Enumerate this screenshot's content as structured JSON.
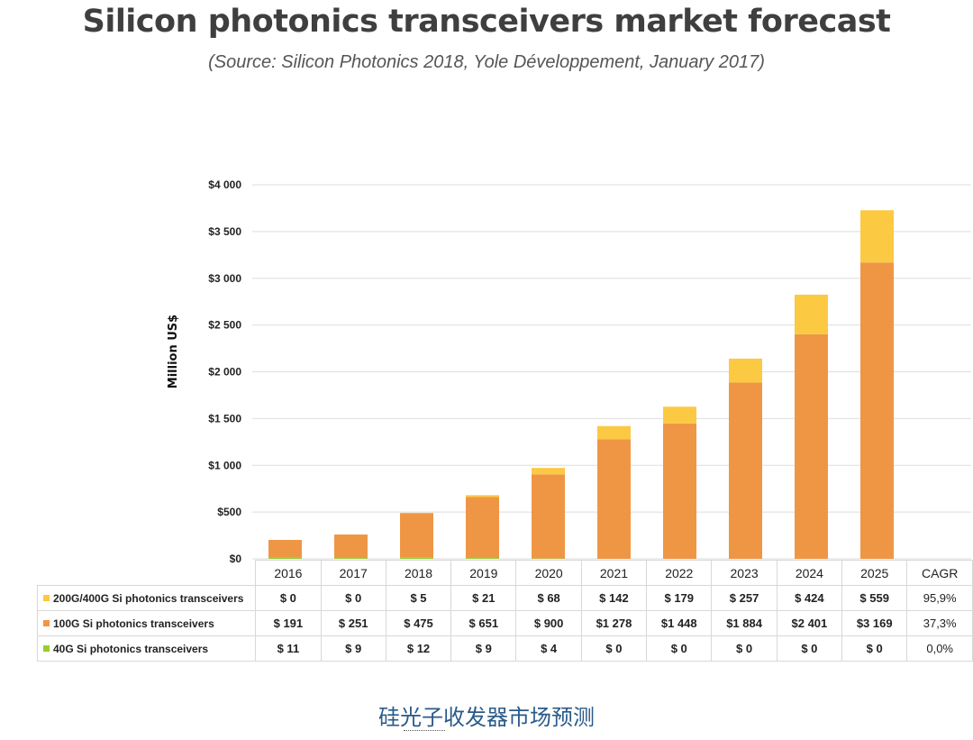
{
  "title": "Silicon photonics transceivers market forecast",
  "subtitle": "(Source: Silicon Photonics 2018, Yole Développement, January 2017)",
  "caption": "硅光子收发器市场预测",
  "colors": {
    "s200": "#fcc943",
    "s100": "#ef9645",
    "s40": "#99cc33",
    "grid": "#dedede"
  },
  "chart_data": {
    "type": "bar",
    "stacked": true,
    "ylabel": "Million US$",
    "ylim": [
      0,
      4000
    ],
    "yticks": [
      "$0",
      "$500",
      "$1 000",
      "$1 500",
      "$2 000",
      "$2 500",
      "$3 000",
      "$3 500",
      "$4 000"
    ],
    "categories": [
      "2016",
      "2017",
      "2018",
      "2019",
      "2020",
      "2021",
      "2022",
      "2023",
      "2024",
      "2025"
    ],
    "series": [
      {
        "name": "40G Si photonics transceivers",
        "values": [
          11,
          9,
          12,
          9,
          4,
          0,
          0,
          0,
          0,
          0
        ]
      },
      {
        "name": "100G Si photonics transceivers",
        "values": [
          191,
          251,
          475,
          651,
          900,
          1278,
          1448,
          1884,
          2401,
          3169
        ]
      },
      {
        "name": "200G/400G Si photonics transceivers",
        "values": [
          0,
          0,
          5,
          21,
          68,
          142,
          179,
          257,
          424,
          559
        ]
      }
    ],
    "grid": true
  },
  "table": {
    "cagr_header": "CAGR",
    "rows": [
      {
        "label": "200G/400G Si photonics transceivers",
        "values": [
          "$ 0",
          "$ 0",
          "$ 5",
          "$ 21",
          "$ 68",
          "$ 142",
          "$ 179",
          "$ 257",
          "$ 424",
          "$ 559"
        ],
        "cagr": "95,9%"
      },
      {
        "label": "100G Si photonics transceivers",
        "values": [
          "$ 191",
          "$ 251",
          "$ 475",
          "$ 651",
          "$ 900",
          "$1 278",
          "$1 448",
          "$1 884",
          "$2 401",
          "$3 169"
        ],
        "cagr": "37,3%"
      },
      {
        "label": "40G Si photonics transceivers",
        "values": [
          "$ 11",
          "$ 9",
          "$ 12",
          "$ 9",
          "$ 4",
          "$ 0",
          "$ 0",
          "$ 0",
          "$ 0",
          "$ 0"
        ],
        "cagr": "0,0%"
      }
    ]
  }
}
